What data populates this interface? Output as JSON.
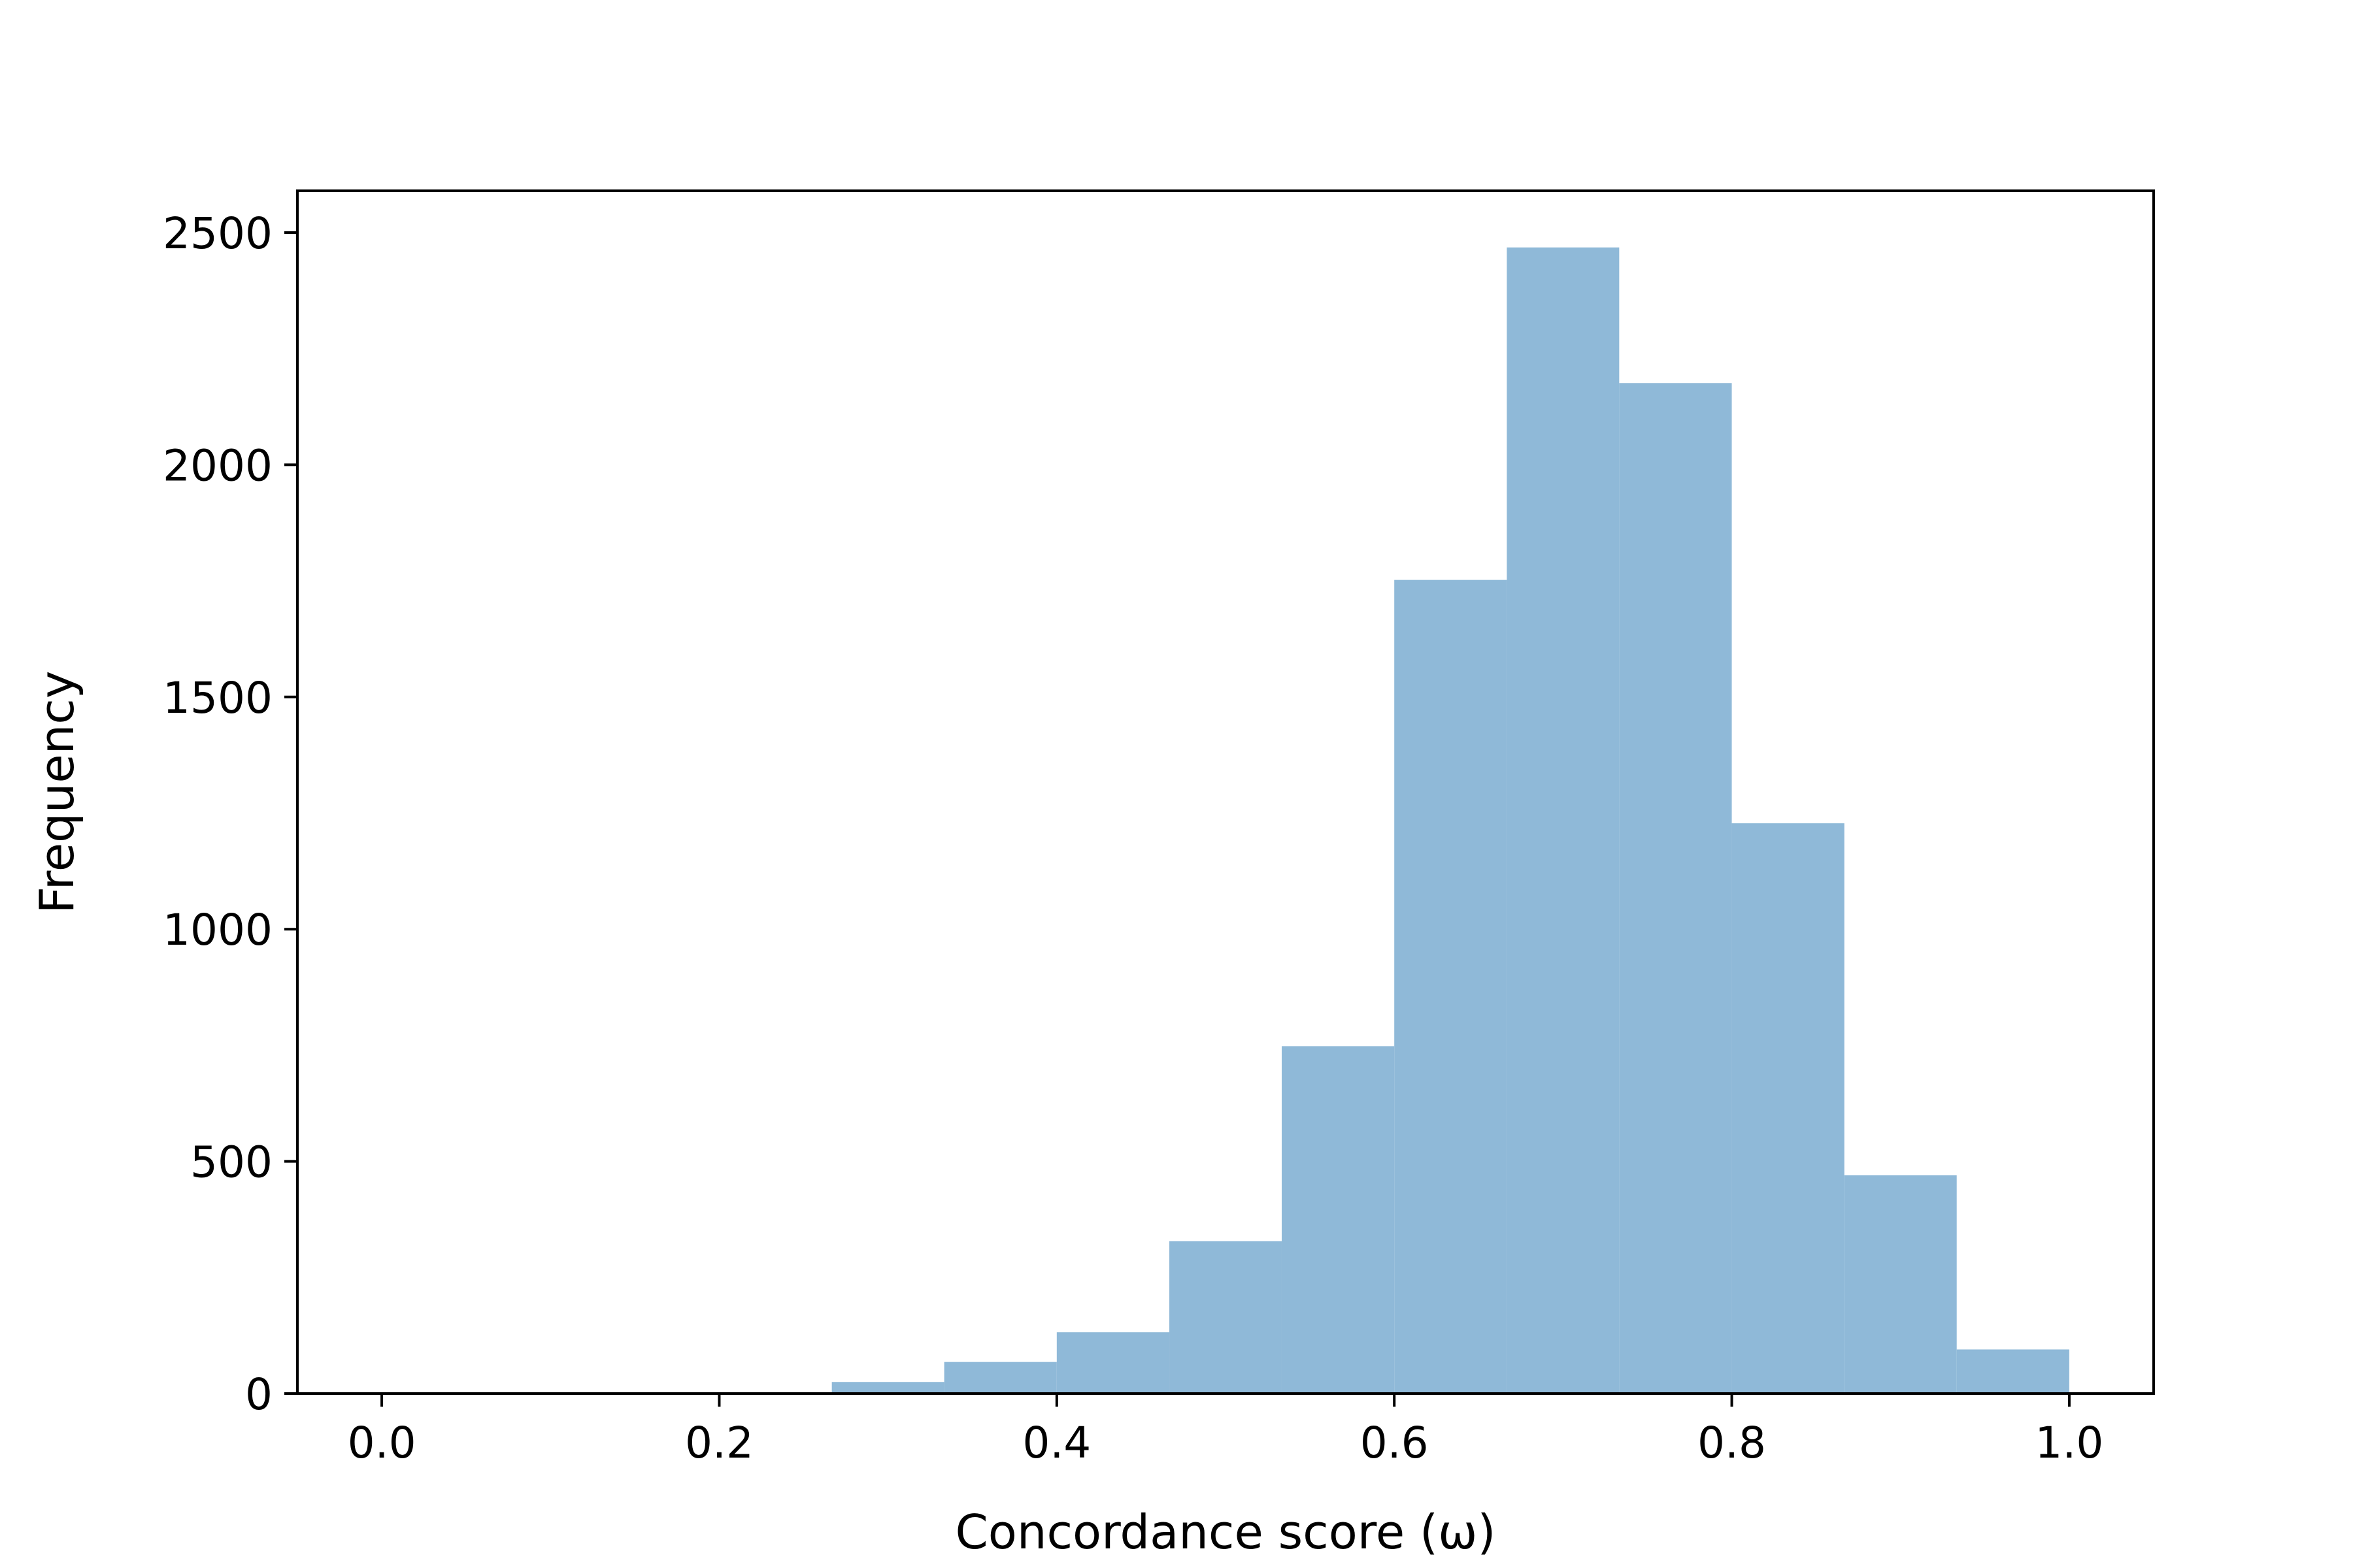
{
  "chart_data": {
    "type": "bar",
    "title": "",
    "xlabel": "Concordance score (ω)",
    "ylabel": "Frequency",
    "xlim": [
      -0.05,
      1.05
    ],
    "ylim": [
      0,
      2590
    ],
    "xticks": [
      "0.0",
      "0.2",
      "0.4",
      "0.6",
      "0.8",
      "1.0"
    ],
    "xtick_values": [
      0.0,
      0.2,
      0.4,
      0.6,
      0.8,
      1.0
    ],
    "yticks": [
      "0",
      "500",
      "1000",
      "1500",
      "2000",
      "2500"
    ],
    "ytick_values": [
      0,
      500,
      1000,
      1500,
      2000,
      2500
    ],
    "grid": false,
    "bar_color": "#8fb9d8",
    "bins": [
      {
        "x0": 0.0,
        "x1": 0.0667,
        "value": 0
      },
      {
        "x0": 0.0667,
        "x1": 0.1333,
        "value": 0
      },
      {
        "x0": 0.1333,
        "x1": 0.2,
        "value": 0
      },
      {
        "x0": 0.2,
        "x1": 0.2667,
        "value": 0
      },
      {
        "x0": 0.2667,
        "x1": 0.3333,
        "value": 25
      },
      {
        "x0": 0.3333,
        "x1": 0.4,
        "value": 68
      },
      {
        "x0": 0.4,
        "x1": 0.4667,
        "value": 132
      },
      {
        "x0": 0.4667,
        "x1": 0.5333,
        "value": 328
      },
      {
        "x0": 0.5333,
        "x1": 0.6,
        "value": 748
      },
      {
        "x0": 0.6,
        "x1": 0.6667,
        "value": 1752
      },
      {
        "x0": 0.6667,
        "x1": 0.7333,
        "value": 2468
      },
      {
        "x0": 0.7333,
        "x1": 0.8,
        "value": 2176
      },
      {
        "x0": 0.8,
        "x1": 0.8667,
        "value": 1228
      },
      {
        "x0": 0.8667,
        "x1": 0.9333,
        "value": 470
      },
      {
        "x0": 0.9333,
        "x1": 1.0,
        "value": 95
      }
    ]
  }
}
